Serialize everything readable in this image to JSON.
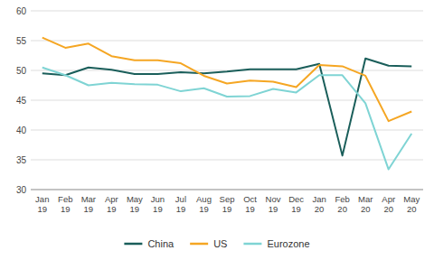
{
  "chart_data": {
    "type": "line",
    "categories": [
      "Jan 19",
      "Feb 19",
      "Mar 19",
      "Apr 19",
      "May 19",
      "Jun 19",
      "Jul 19",
      "Aug 19",
      "Sep 19",
      "Oct 19",
      "Nov 19",
      "Dec 19",
      "Jan 20",
      "Feb 20",
      "Mar 20",
      "Apr 20",
      "May 20"
    ],
    "series": [
      {
        "name": "China",
        "color": "#1a5e5a",
        "values": [
          49.5,
          49.2,
          50.5,
          50.1,
          49.4,
          49.4,
          49.7,
          49.5,
          49.8,
          50.2,
          50.2,
          50.2,
          51.1,
          35.7,
          52.0,
          50.8,
          50.7
        ]
      },
      {
        "name": "US",
        "color": "#f5a623",
        "values": [
          55.5,
          53.8,
          54.5,
          52.4,
          51.7,
          51.7,
          51.2,
          49.1,
          47.8,
          48.3,
          48.1,
          47.2,
          50.9,
          50.7,
          49.1,
          41.5,
          43.1
        ]
      },
      {
        "name": "Eurozone",
        "color": "#7fd4d4",
        "values": [
          50.5,
          49.2,
          47.5,
          47.9,
          47.7,
          47.6,
          46.5,
          47.0,
          45.6,
          45.7,
          46.9,
          46.3,
          49.2,
          49.2,
          44.5,
          33.4,
          39.4
        ]
      }
    ],
    "ylim": [
      30,
      60
    ],
    "yticks": [
      30,
      35,
      40,
      45,
      50,
      55,
      60
    ],
    "grid": true,
    "legend": "bottom"
  }
}
